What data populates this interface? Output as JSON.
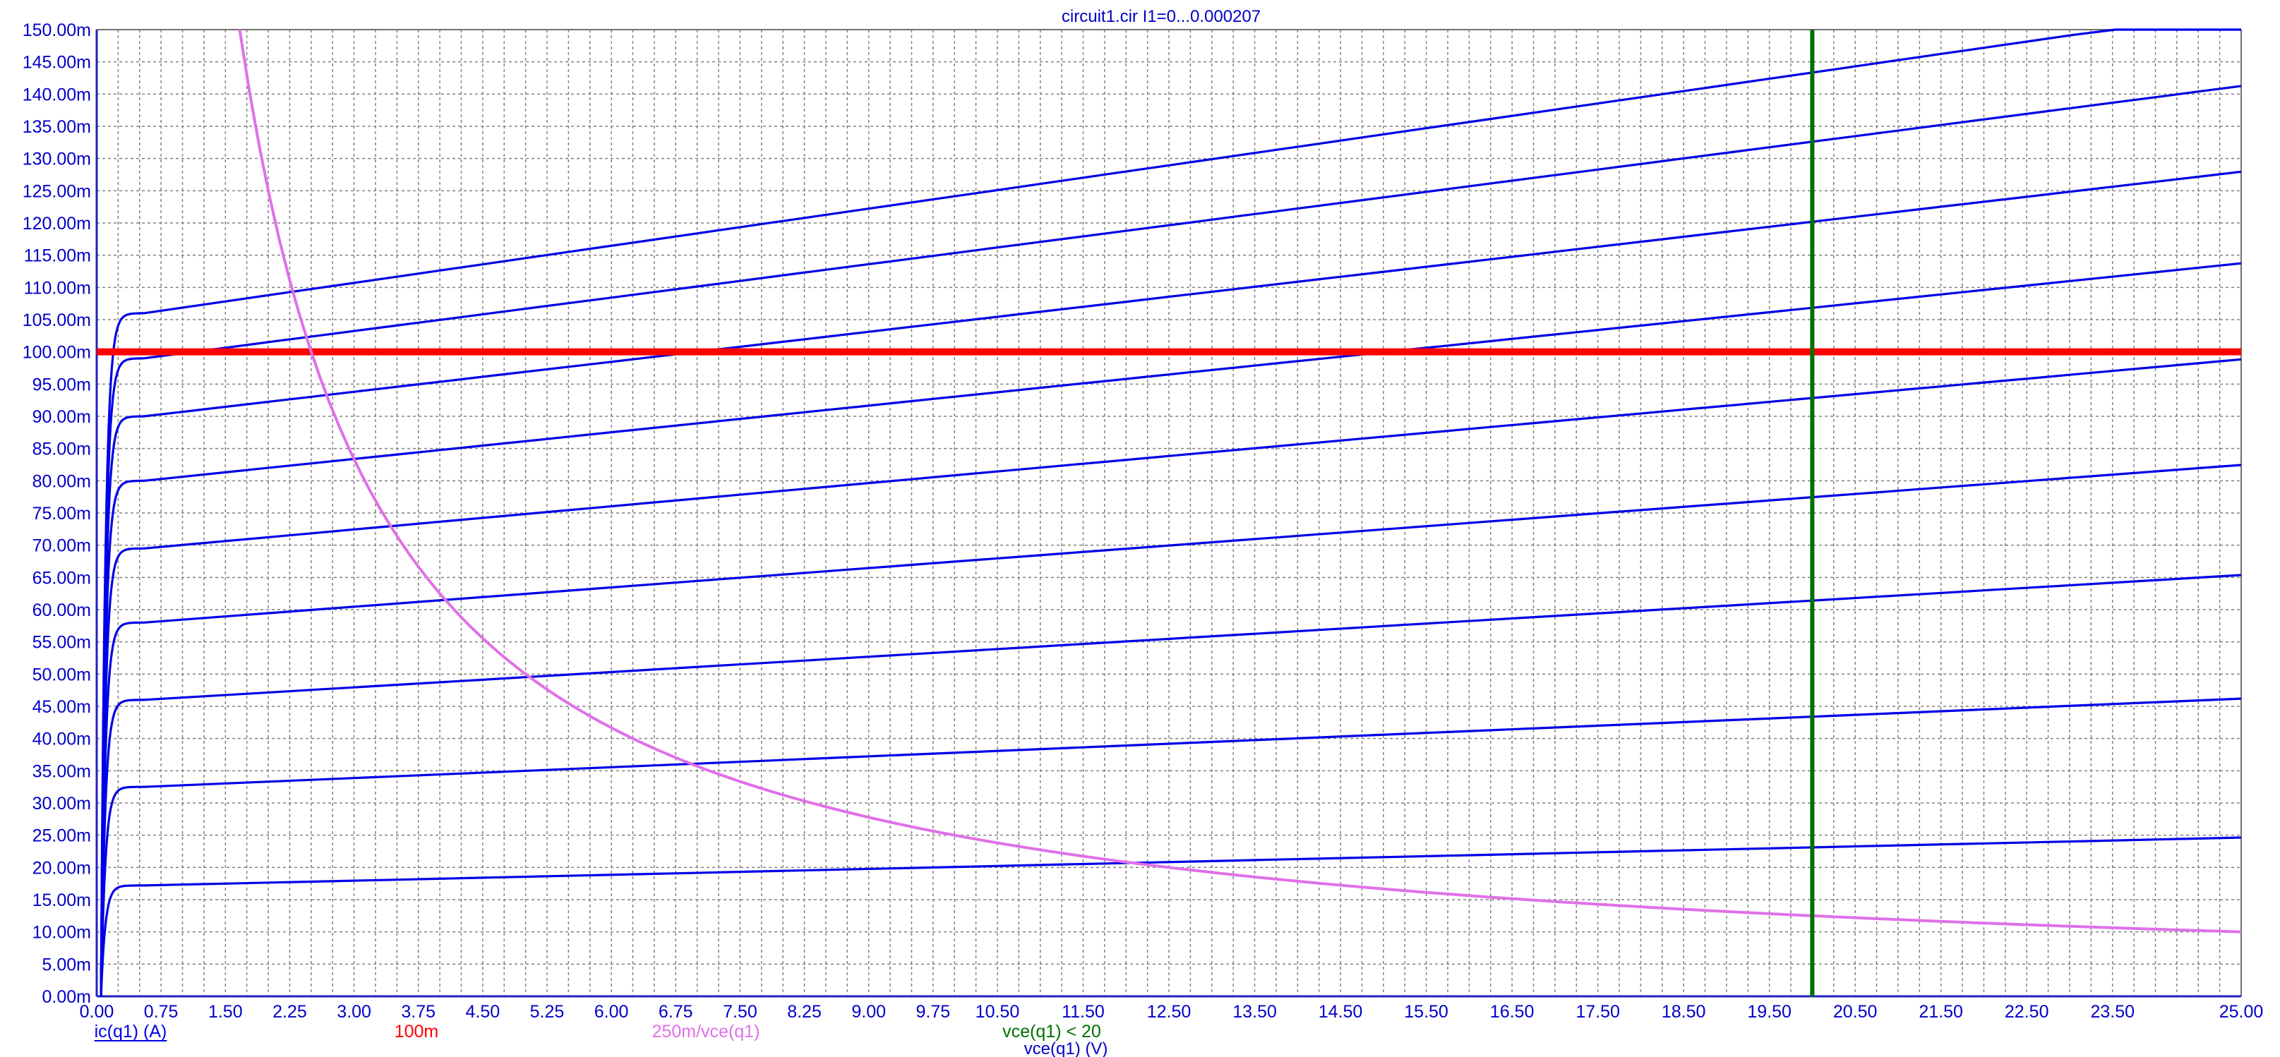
{
  "chart_data": {
    "type": "line",
    "title": "circuit1.cir I1=0...0.000207",
    "xlabel": "vce(q1) (V)",
    "xlim": [
      0,
      25
    ],
    "ylim": [
      0,
      0.15
    ],
    "grid": true,
    "x_ticks": [
      {
        "v": 0,
        "label": "0.00"
      },
      {
        "v": 0.75,
        "label": "0.75"
      },
      {
        "v": 1.5,
        "label": "1.50"
      },
      {
        "v": 2.25,
        "label": "2.25"
      },
      {
        "v": 3,
        "label": "3.00"
      },
      {
        "v": 3.75,
        "label": "3.75"
      },
      {
        "v": 4.5,
        "label": "4.50"
      },
      {
        "v": 5.25,
        "label": "5.25"
      },
      {
        "v": 6,
        "label": "6.00"
      },
      {
        "v": 6.75,
        "label": "6.75"
      },
      {
        "v": 7.5,
        "label": "7.50"
      },
      {
        "v": 8.25,
        "label": "8.25"
      },
      {
        "v": 9,
        "label": "9.00"
      },
      {
        "v": 9.75,
        "label": "9.75"
      },
      {
        "v": 10.5,
        "label": "10.50"
      },
      {
        "v": 11.5,
        "label": "11.50"
      },
      {
        "v": 12.5,
        "label": "12.50"
      },
      {
        "v": 13.5,
        "label": "13.50"
      },
      {
        "v": 14.5,
        "label": "14.50"
      },
      {
        "v": 15.5,
        "label": "15.50"
      },
      {
        "v": 16.5,
        "label": "16.50"
      },
      {
        "v": 17.5,
        "label": "17.50"
      },
      {
        "v": 18.5,
        "label": "18.50"
      },
      {
        "v": 19.5,
        "label": "19.50"
      },
      {
        "v": 20.5,
        "label": "20.50"
      },
      {
        "v": 21.5,
        "label": "21.50"
      },
      {
        "v": 22.5,
        "label": "22.50"
      },
      {
        "v": 23.5,
        "label": "23.50"
      },
      {
        "v": 25,
        "label": "25.00"
      }
    ],
    "y_ticks": [
      {
        "v": 0,
        "label": "0.00m"
      },
      {
        "v": 0.005,
        "label": "5.00m"
      },
      {
        "v": 0.01,
        "label": "10.00m"
      },
      {
        "v": 0.015,
        "label": "15.00m"
      },
      {
        "v": 0.02,
        "label": "20.00m"
      },
      {
        "v": 0.025,
        "label": "25.00m"
      },
      {
        "v": 0.03,
        "label": "30.00m"
      },
      {
        "v": 0.035,
        "label": "35.00m"
      },
      {
        "v": 0.04,
        "label": "40.00m"
      },
      {
        "v": 0.045,
        "label": "45.00m"
      },
      {
        "v": 0.05,
        "label": "50.00m"
      },
      {
        "v": 0.055,
        "label": "55.00m"
      },
      {
        "v": 0.06,
        "label": "60.00m"
      },
      {
        "v": 0.065,
        "label": "65.00m"
      },
      {
        "v": 0.07,
        "label": "70.00m"
      },
      {
        "v": 0.075,
        "label": "75.00m"
      },
      {
        "v": 0.08,
        "label": "80.00m"
      },
      {
        "v": 0.085,
        "label": "85.00m"
      },
      {
        "v": 0.09,
        "label": "90.00m"
      },
      {
        "v": 0.095,
        "label": "95.00m"
      },
      {
        "v": 0.1,
        "label": "100.00m"
      },
      {
        "v": 0.105,
        "label": "105.00m"
      },
      {
        "v": 0.11,
        "label": "110.00m"
      },
      {
        "v": 0.115,
        "label": "115.00m"
      },
      {
        "v": 0.12,
        "label": "120.00m"
      },
      {
        "v": 0.125,
        "label": "125.00m"
      },
      {
        "v": 0.13,
        "label": "130.00m"
      },
      {
        "v": 0.135,
        "label": "135.00m"
      },
      {
        "v": 0.14,
        "label": "140.00m"
      },
      {
        "v": 0.145,
        "label": "145.00m"
      },
      {
        "v": 0.15,
        "label": "150.00m"
      }
    ],
    "series": [
      {
        "name": "ic(q1) (A)",
        "color": "#0000e8",
        "curves": [
          {
            "start": 0.0172,
            "end": 0.0248
          },
          {
            "start": 0.0325,
            "end": 0.0465
          },
          {
            "start": 0.046,
            "end": 0.0658
          },
          {
            "start": 0.058,
            "end": 0.083
          },
          {
            "start": 0.0695,
            "end": 0.0995
          },
          {
            "start": 0.08,
            "end": 0.1145
          },
          {
            "start": 0.09,
            "end": 0.1288
          },
          {
            "start": 0.099,
            "end": 0.1422
          },
          {
            "start": 0.106,
            "end": 0.154
          }
        ]
      },
      {
        "name": "100m",
        "color": "#ff0000",
        "value": 0.1
      },
      {
        "name": "250m/vce(q1)",
        "color": "#e070e8",
        "numerator": 0.25
      },
      {
        "name": "vce(q1) < 20",
        "color": "#007000",
        "x": 20
      }
    ]
  }
}
